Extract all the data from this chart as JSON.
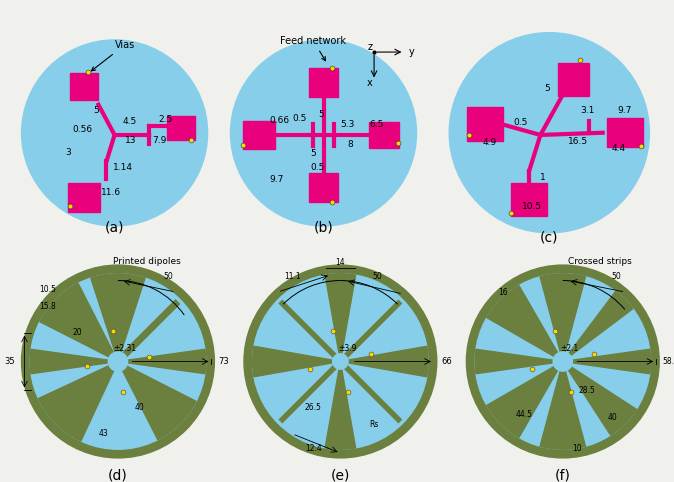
{
  "fig_width": 6.74,
  "fig_height": 4.82,
  "dpi": 100,
  "bg_color": "#f0f0ec",
  "light_blue": "#87CEEB",
  "magenta": "#E8007D",
  "dark_green": "#6B7F3E",
  "yellow_dot": "#FFD700",
  "panel_labels": [
    "(a)",
    "(b)",
    "(c)",
    "(d)",
    "(e)",
    "(f)"
  ]
}
